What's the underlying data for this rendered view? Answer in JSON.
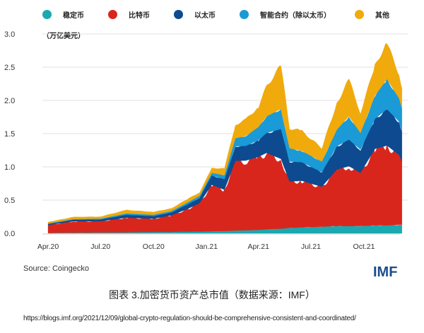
{
  "chart_data": {
    "type": "area",
    "stacked": true,
    "title": "",
    "ylabel": "（万亿美元）",
    "xlabel": "",
    "ylim": [
      0,
      3.0
    ],
    "yticks": [
      "0.0",
      "0.5",
      "1.0",
      "1.5",
      "2.0",
      "2.5",
      "3.0"
    ],
    "xticks": [
      {
        "date": "2020-04-01",
        "label": "Apr.20"
      },
      {
        "date": "2020-07-01",
        "label": "Jul.20"
      },
      {
        "date": "2020-10-01",
        "label": "Oct.20"
      },
      {
        "date": "2021-01-01",
        "label": "Jan.21"
      },
      {
        "date": "2021-04-01",
        "label": "Apr.21"
      },
      {
        "date": "2021-07-01",
        "label": "Jul.21"
      },
      {
        "date": "2021-10-01",
        "label": "Oct.21"
      }
    ],
    "grid": true,
    "legend_position": "top",
    "x": [
      "2020-04-01",
      "2020-05-15",
      "2020-07-01",
      "2020-08-15",
      "2020-10-01",
      "2020-11-01",
      "2020-12-01",
      "2020-12-20",
      "2021-01-10",
      "2021-02-01",
      "2021-02-20",
      "2021-03-10",
      "2021-04-01",
      "2021-04-15",
      "2021-05-10",
      "2021-05-25",
      "2021-06-15",
      "2021-07-20",
      "2021-08-15",
      "2021-09-05",
      "2021-09-25",
      "2021-10-20",
      "2021-11-10",
      "2021-12-01",
      "2021-12-06"
    ],
    "series": [
      {
        "name": "稳定币",
        "color": "#1aa9b0",
        "values": [
          0.005,
          0.01,
          0.012,
          0.015,
          0.02,
          0.02,
          0.025,
          0.025,
          0.03,
          0.035,
          0.04,
          0.045,
          0.05,
          0.06,
          0.07,
          0.08,
          0.09,
          0.1,
          0.11,
          0.11,
          0.11,
          0.12,
          0.12,
          0.13,
          0.13
        ]
      },
      {
        "name": "比特币",
        "color": "#d9261c",
        "values": [
          0.12,
          0.17,
          0.17,
          0.22,
          0.2,
          0.25,
          0.35,
          0.43,
          0.7,
          0.62,
          1.05,
          1.05,
          1.1,
          1.15,
          1.05,
          0.7,
          0.7,
          0.6,
          0.85,
          0.9,
          0.8,
          1.15,
          1.2,
          1.05,
          0.95
        ]
      },
      {
        "name": "以太币",
        "color": "#0d4a8f",
        "values": [
          0.015,
          0.025,
          0.027,
          0.045,
          0.04,
          0.045,
          0.07,
          0.08,
          0.14,
          0.16,
          0.22,
          0.22,
          0.25,
          0.3,
          0.45,
          0.3,
          0.28,
          0.22,
          0.35,
          0.4,
          0.35,
          0.45,
          0.55,
          0.5,
          0.45
        ]
      },
      {
        "name": "智能合约（除以太币）",
        "color": "#1a9ad6",
        "values": [
          0.01,
          0.01,
          0.012,
          0.02,
          0.02,
          0.02,
          0.03,
          0.03,
          0.04,
          0.06,
          0.12,
          0.15,
          0.2,
          0.25,
          0.3,
          0.2,
          0.17,
          0.16,
          0.25,
          0.35,
          0.25,
          0.35,
          0.45,
          0.35,
          0.35
        ]
      },
      {
        "name": "其他",
        "color": "#f0aa0c",
        "values": [
          0.02,
          0.03,
          0.03,
          0.05,
          0.04,
          0.04,
          0.05,
          0.05,
          0.07,
          0.1,
          0.2,
          0.25,
          0.3,
          0.45,
          0.65,
          0.3,
          0.3,
          0.2,
          0.4,
          0.55,
          0.3,
          0.45,
          0.55,
          0.35,
          0.3
        ]
      }
    ]
  },
  "source": "Source: Coingecko",
  "logo": "IMF",
  "caption": "图表 3.加密货币资产总市值（数据来源：IMF）",
  "url": "https://blogs.imf.org/2021/12/09/global-crypto-regulation-should-be-comprehensive-consistent-and-coordinated/"
}
